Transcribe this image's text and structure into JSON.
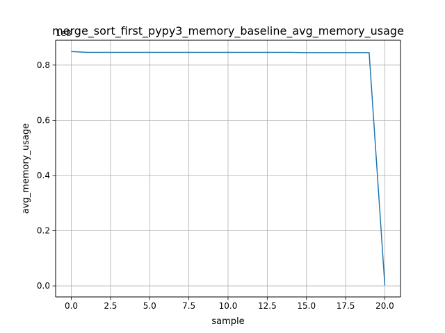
{
  "chart_data": {
    "type": "line",
    "title": "merge_sort_first_pypy3_memory_baseline_avg_memory_usage",
    "xlabel": "sample",
    "ylabel": "avg_memory_usage",
    "offset_text": "1e8",
    "xlim": [
      -1,
      21
    ],
    "ylim": [
      -0.04,
      0.89
    ],
    "x_ticks": [
      0.0,
      2.5,
      5.0,
      7.5,
      10.0,
      12.5,
      15.0,
      17.5,
      20.0
    ],
    "x_tick_labels": [
      "0.0",
      "2.5",
      "5.0",
      "7.5",
      "10.0",
      "12.5",
      "15.0",
      "17.5",
      "20.0"
    ],
    "y_ticks": [
      0.0,
      0.2,
      0.4,
      0.6,
      0.8
    ],
    "y_tick_labels": [
      "0.0",
      "0.2",
      "0.4",
      "0.6",
      "0.8"
    ],
    "grid": true,
    "series": [
      {
        "color": "#1f77b4",
        "x": [
          0,
          1,
          2,
          3,
          4,
          5,
          6,
          7,
          8,
          9,
          10,
          11,
          12,
          13,
          14,
          15,
          16,
          17,
          18,
          19,
          20
        ],
        "values": [
          0.849,
          0.846,
          0.846,
          0.846,
          0.846,
          0.846,
          0.846,
          0.846,
          0.846,
          0.846,
          0.846,
          0.846,
          0.846,
          0.846,
          0.846,
          0.845,
          0.845,
          0.845,
          0.845,
          0.845,
          0.002
        ]
      }
    ]
  }
}
